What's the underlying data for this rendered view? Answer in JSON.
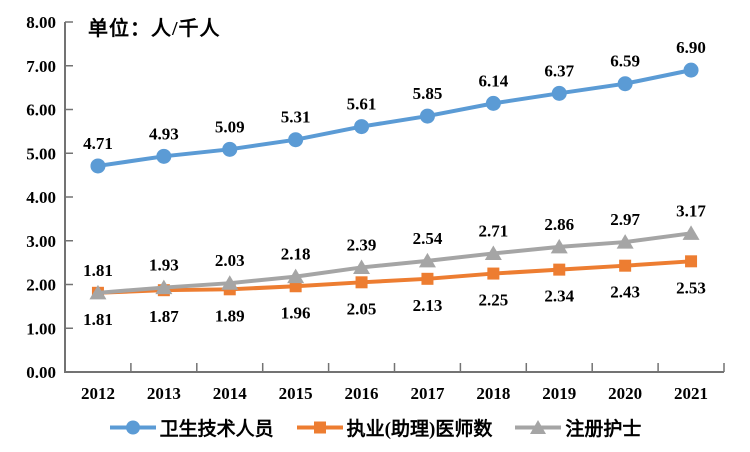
{
  "chart_data": {
    "type": "line",
    "title": "单位：人/千人",
    "categories": [
      "2012",
      "2013",
      "2014",
      "2015",
      "2016",
      "2017",
      "2018",
      "2019",
      "2020",
      "2021"
    ],
    "series": [
      {
        "name": "卫生技术人员",
        "marker": "circle",
        "color": "#5B9BD5",
        "label_position": "above",
        "values": [
          4.71,
          4.93,
          5.09,
          5.31,
          5.61,
          5.85,
          6.14,
          6.37,
          6.59,
          6.9
        ]
      },
      {
        "name": "执业(助理)医师数",
        "marker": "square",
        "color": "#ED7D31",
        "label_position": "below",
        "values": [
          1.81,
          1.87,
          1.89,
          1.96,
          2.05,
          2.13,
          2.25,
          2.34,
          2.43,
          2.53
        ]
      },
      {
        "name": "注册护士",
        "marker": "triangle",
        "color": "#A5A5A5",
        "label_position": "above",
        "values": [
          1.81,
          1.93,
          2.03,
          2.18,
          2.39,
          2.54,
          2.71,
          2.86,
          2.97,
          3.17
        ]
      }
    ],
    "ylim": [
      0,
      8
    ],
    "ytick_step": 1,
    "ytick_decimals": 2,
    "value_decimals": 2,
    "grid": false,
    "legend_position": "bottom",
    "axis_color": "#737373",
    "text_color": "#000000",
    "background": "#FFFFFF"
  }
}
